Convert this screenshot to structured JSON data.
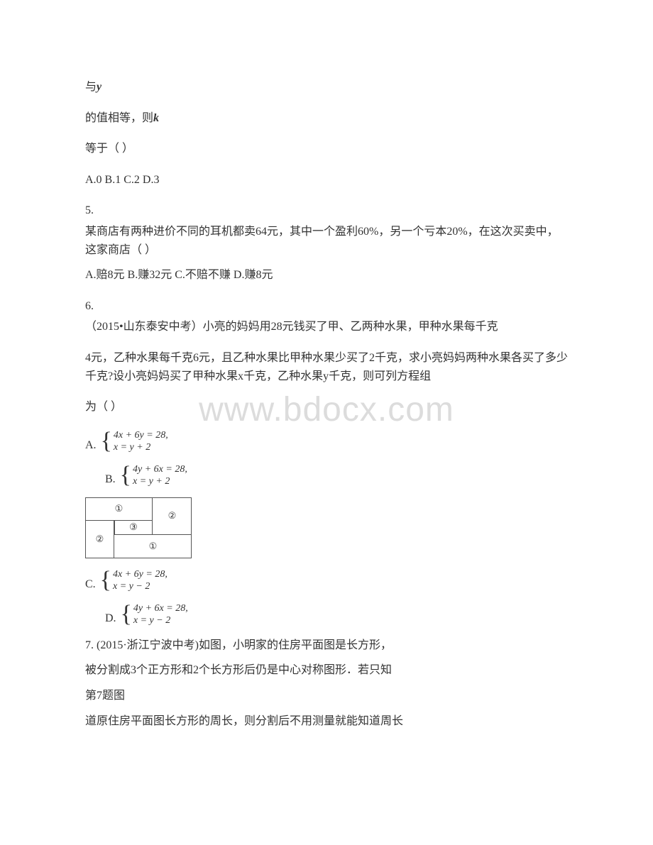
{
  "watermark": "www.bdocx.com",
  "lead": {
    "line1_prefix": "与",
    "line1_var": "y",
    "line2_prefix": "的值相等，则",
    "line2_var": "k",
    "line3": "等于（ ）",
    "line4": "A.0 B.1 C.2 D.3"
  },
  "q5": {
    "num": "5.",
    "text": "某商店有两种进价不同的耳机都卖64元，其中一个盈利60%，另一个亏本20%，在这次买卖中，这家商店（ ）",
    "options": "A.赔8元 B.赚32元 C.不赔不赚 D.赚8元"
  },
  "q6": {
    "num": "6.",
    "text1": "（2015•山东泰安中考）小亮的妈妈用28元钱买了甲、乙两种水果，甲种水果每千克",
    "text2": "4元，乙种水果每千克6元，且乙种水果比甲种水果少买了2千克，求小亮妈妈两种水果各买了多少千克?设小亮妈妈买了甲种水果x千克，乙种水果y千克，则可列方程组",
    "text3": "为（ ）",
    "optA": {
      "label": "A.",
      "l1": "4x + 6y = 28,",
      "l2": "x = y + 2"
    },
    "optB": {
      "label": "B.",
      "l1": "4y + 6x = 28,",
      "l2": "x = y + 2"
    },
    "optC": {
      "label": "C.",
      "l1": "4x + 6y = 28,",
      "l2": "x = y − 2"
    },
    "optD": {
      "label": "D.",
      "l1": "4y + 6x = 28,",
      "l2": "x = y − 2"
    }
  },
  "diagram": {
    "c1": "①",
    "c2": "②",
    "c3": "③",
    "c4": "②",
    "c5": "①"
  },
  "q7": {
    "line1": "7. (2015·浙江宁波中考)如图，小明家的住房平面图是长方形，",
    "line2": "被分割成3个正方形和2个长方形后仍是中心对称图形．若只知",
    "caption": "第7题图",
    "line3": "道原住房平面图长方形的周长，则分割后不用测量就能知道周长"
  },
  "colors": {
    "text": "#333333",
    "border": "#555555",
    "watermark": "#dcdcdc",
    "background": "#ffffff"
  }
}
